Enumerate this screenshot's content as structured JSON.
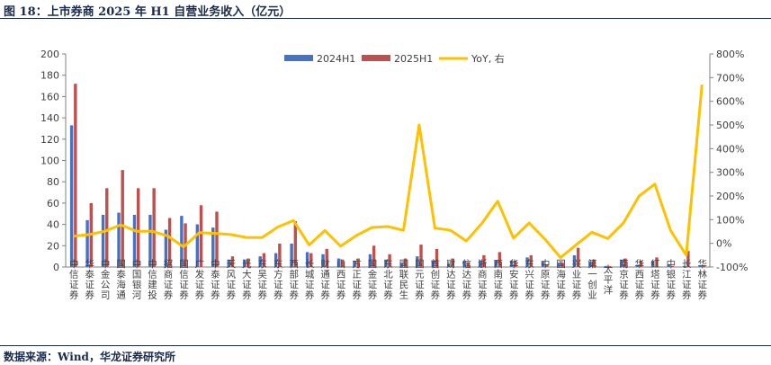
{
  "figure": {
    "title": "图 18：上市券商 2025 年 H1 自营业务收入（亿元）",
    "source": "数据来源：Wind，华龙证券研究所"
  },
  "colors": {
    "s2024": "#4472C4",
    "s2025": "#C0504D",
    "yoy": "#FFC000",
    "axis": "#808080",
    "text": "#404040"
  },
  "chart_data": {
    "type": "bar",
    "categories": [
      "中信证券",
      "华泰证券",
      "中金公司",
      "国泰海通",
      "中国银河",
      "中信建投",
      "招商证券",
      "国信证券",
      "广发证券",
      "中泰证券",
      "天风证券",
      "光大证券",
      "东吴证券",
      "东方证券",
      "西部证券",
      "长城证券",
      "财通证券",
      "山西证券",
      "方正证券",
      "国金证券",
      "东北证券",
      "国联民生",
      "国元证券",
      "首创证券",
      "财达证券",
      "信达证券",
      "浙商证券",
      "西南证券",
      "华安证券",
      "东兴证券",
      "中原证券",
      "国海证券",
      "兴业证券",
      "第一创业",
      "太平洋",
      "南京证券",
      "华西证券",
      "红塔证券",
      "中银证券",
      "长江证券",
      "华林证券"
    ],
    "series": [
      {
        "name": "2024H1",
        "axis": "left",
        "values": [
          133,
          44,
          49,
          51,
          49,
          49,
          35,
          48,
          40,
          37,
          7,
          7,
          10,
          13,
          22,
          14,
          12,
          8,
          6,
          12,
          7,
          4,
          10,
          6,
          3,
          6,
          6,
          6,
          6,
          9,
          5,
          4,
          11,
          5,
          1,
          7,
          2,
          6,
          2,
          1,
          1
        ]
      },
      {
        "name": "2025H1",
        "axis": "left",
        "values": [
          172,
          60,
          74,
          91,
          74,
          74,
          46,
          41,
          58,
          52,
          10,
          8,
          13,
          22,
          43,
          13,
          17,
          7,
          8,
          20,
          12,
          8,
          21,
          17,
          8,
          4,
          11,
          14,
          6,
          11,
          2,
          4,
          18,
          7,
          1,
          8,
          6,
          9,
          1,
          15,
          1
        ]
      },
      {
        "name": "YoY, 右",
        "axis": "right",
        "type": "line",
        "values": [
          30,
          37,
          51,
          78,
          51,
          51,
          31,
          -15,
          45,
          42,
          37,
          25,
          24,
          69,
          96,
          -7,
          54,
          -12,
          33,
          67,
          71,
          55,
          500,
          65,
          55,
          10,
          85,
          178,
          22,
          86,
          18,
          -60,
          -6,
          47,
          20,
          86,
          200,
          250,
          55,
          -50,
          670
        ]
      }
    ],
    "y_left": {
      "range": [
        0,
        200
      ],
      "ticks": [
        0,
        20,
        40,
        60,
        80,
        100,
        120,
        140,
        160,
        180,
        200
      ]
    },
    "y_right": {
      "range": [
        -100,
        800
      ],
      "ticks": [
        "-100%",
        "0%",
        "100%",
        "200%",
        "300%",
        "400%",
        "500%",
        "600%",
        "700%",
        "800%"
      ]
    },
    "legend": {
      "placement": "top-center",
      "labels": [
        "2024H1",
        "2025H1",
        "YoY, 右"
      ]
    }
  }
}
